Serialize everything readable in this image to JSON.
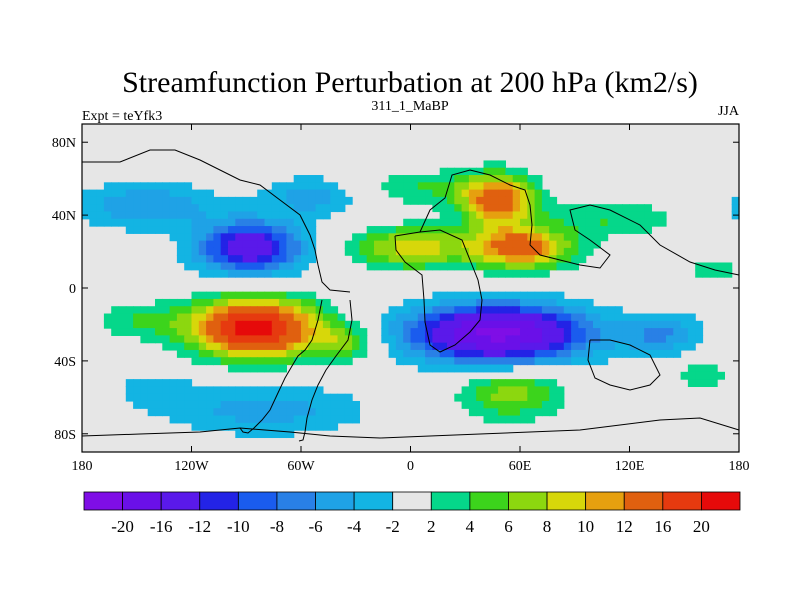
{
  "chart_data": {
    "type": "heatmap",
    "title": "Streamfunction Perturbation at 200 hPa (km2/s)",
    "left_string": "Expt = teYfk3",
    "center_string": "311_1_MaBP",
    "right_string": "JJA",
    "x_range": [
      -180,
      180
    ],
    "y_range": [
      -90,
      90
    ],
    "x_ticks": [
      {
        "value": -180,
        "label": "180"
      },
      {
        "value": -120,
        "label": "120W"
      },
      {
        "value": -60,
        "label": "60W"
      },
      {
        "value": 0,
        "label": "0"
      },
      {
        "value": 60,
        "label": "60E"
      },
      {
        "value": 120,
        "label": "120E"
      },
      {
        "value": 180,
        "label": "180"
      }
    ],
    "y_ticks": [
      {
        "value": 80,
        "label": "80N"
      },
      {
        "value": 40,
        "label": "40N"
      },
      {
        "value": 0,
        "label": "0"
      },
      {
        "value": -40,
        "label": "40S"
      },
      {
        "value": -80,
        "label": "80S"
      }
    ],
    "levels": [
      -20,
      -16,
      -12,
      -10,
      -8,
      -6,
      -4,
      -2,
      2,
      4,
      6,
      8,
      10,
      12,
      16,
      20
    ],
    "level_labels": [
      "-20",
      "-16",
      "-12",
      "-10",
      "-8",
      "-6",
      "-4",
      "-2",
      "2",
      "4",
      "6",
      "8",
      "10",
      "12",
      "16",
      "20"
    ],
    "colors": [
      "#7f0ee6",
      "#6a10e8",
      "#5a19ea",
      "#2323e6",
      "#1a5cee",
      "#2980e6",
      "#1fa2e6",
      "#13b4e3",
      "#e6e6e6",
      "#05d78a",
      "#3cd41c",
      "#8cd70f",
      "#d7d70a",
      "#e6a00f",
      "#e0600f",
      "#e63a0f",
      "#e60a0a"
    ],
    "features": [
      {
        "lon": -88,
        "lat": 22,
        "amp": -15,
        "sx": 20,
        "sy": 10
      },
      {
        "lon": -145,
        "lat": 45,
        "amp": -6,
        "sx": 28,
        "sy": 9
      },
      {
        "lon": -55,
        "lat": 50,
        "amp": -5,
        "sx": 18,
        "sy": 8
      },
      {
        "lon": -85,
        "lat": -22,
        "amp": 22,
        "sx": 24,
        "sy": 11
      },
      {
        "lon": -148,
        "lat": -18,
        "amp": 4,
        "sx": 18,
        "sy": 7
      },
      {
        "lon": -35,
        "lat": -30,
        "amp": 6,
        "sx": 12,
        "sy": 7
      },
      {
        "lon": 48,
        "lat": -25,
        "amp": -21,
        "sx": 34,
        "sy": 11
      },
      {
        "lon": 138,
        "lat": -25,
        "amp": -6,
        "sx": 16,
        "sy": 8
      },
      {
        "lon": 48,
        "lat": 48,
        "amp": 14,
        "sx": 14,
        "sy": 10
      },
      {
        "lon": 60,
        "lat": 22,
        "amp": 14,
        "sx": 20,
        "sy": 8
      },
      {
        "lon": 0,
        "lat": 22,
        "amp": 9,
        "sx": 22,
        "sy": 8
      },
      {
        "lon": 10,
        "lat": 55,
        "amp": 4,
        "sx": 24,
        "sy": 7
      },
      {
        "lon": 110,
        "lat": 38,
        "amp": 4,
        "sx": 26,
        "sy": 7
      },
      {
        "lon": 55,
        "lat": -58,
        "amp": 7,
        "sx": 20,
        "sy": 10
      },
      {
        "lon": -80,
        "lat": -67,
        "amp": -5,
        "sx": 40,
        "sy": 10
      },
      {
        "lon": -140,
        "lat": -55,
        "amp": -3,
        "sx": 16,
        "sy": 7
      },
      {
        "lon": 160,
        "lat": -48,
        "amp": 4,
        "sx": 10,
        "sy": 6
      },
      {
        "lon": 165,
        "lat": 10,
        "amp": 3,
        "sx": 12,
        "sy": 5
      }
    ]
  }
}
